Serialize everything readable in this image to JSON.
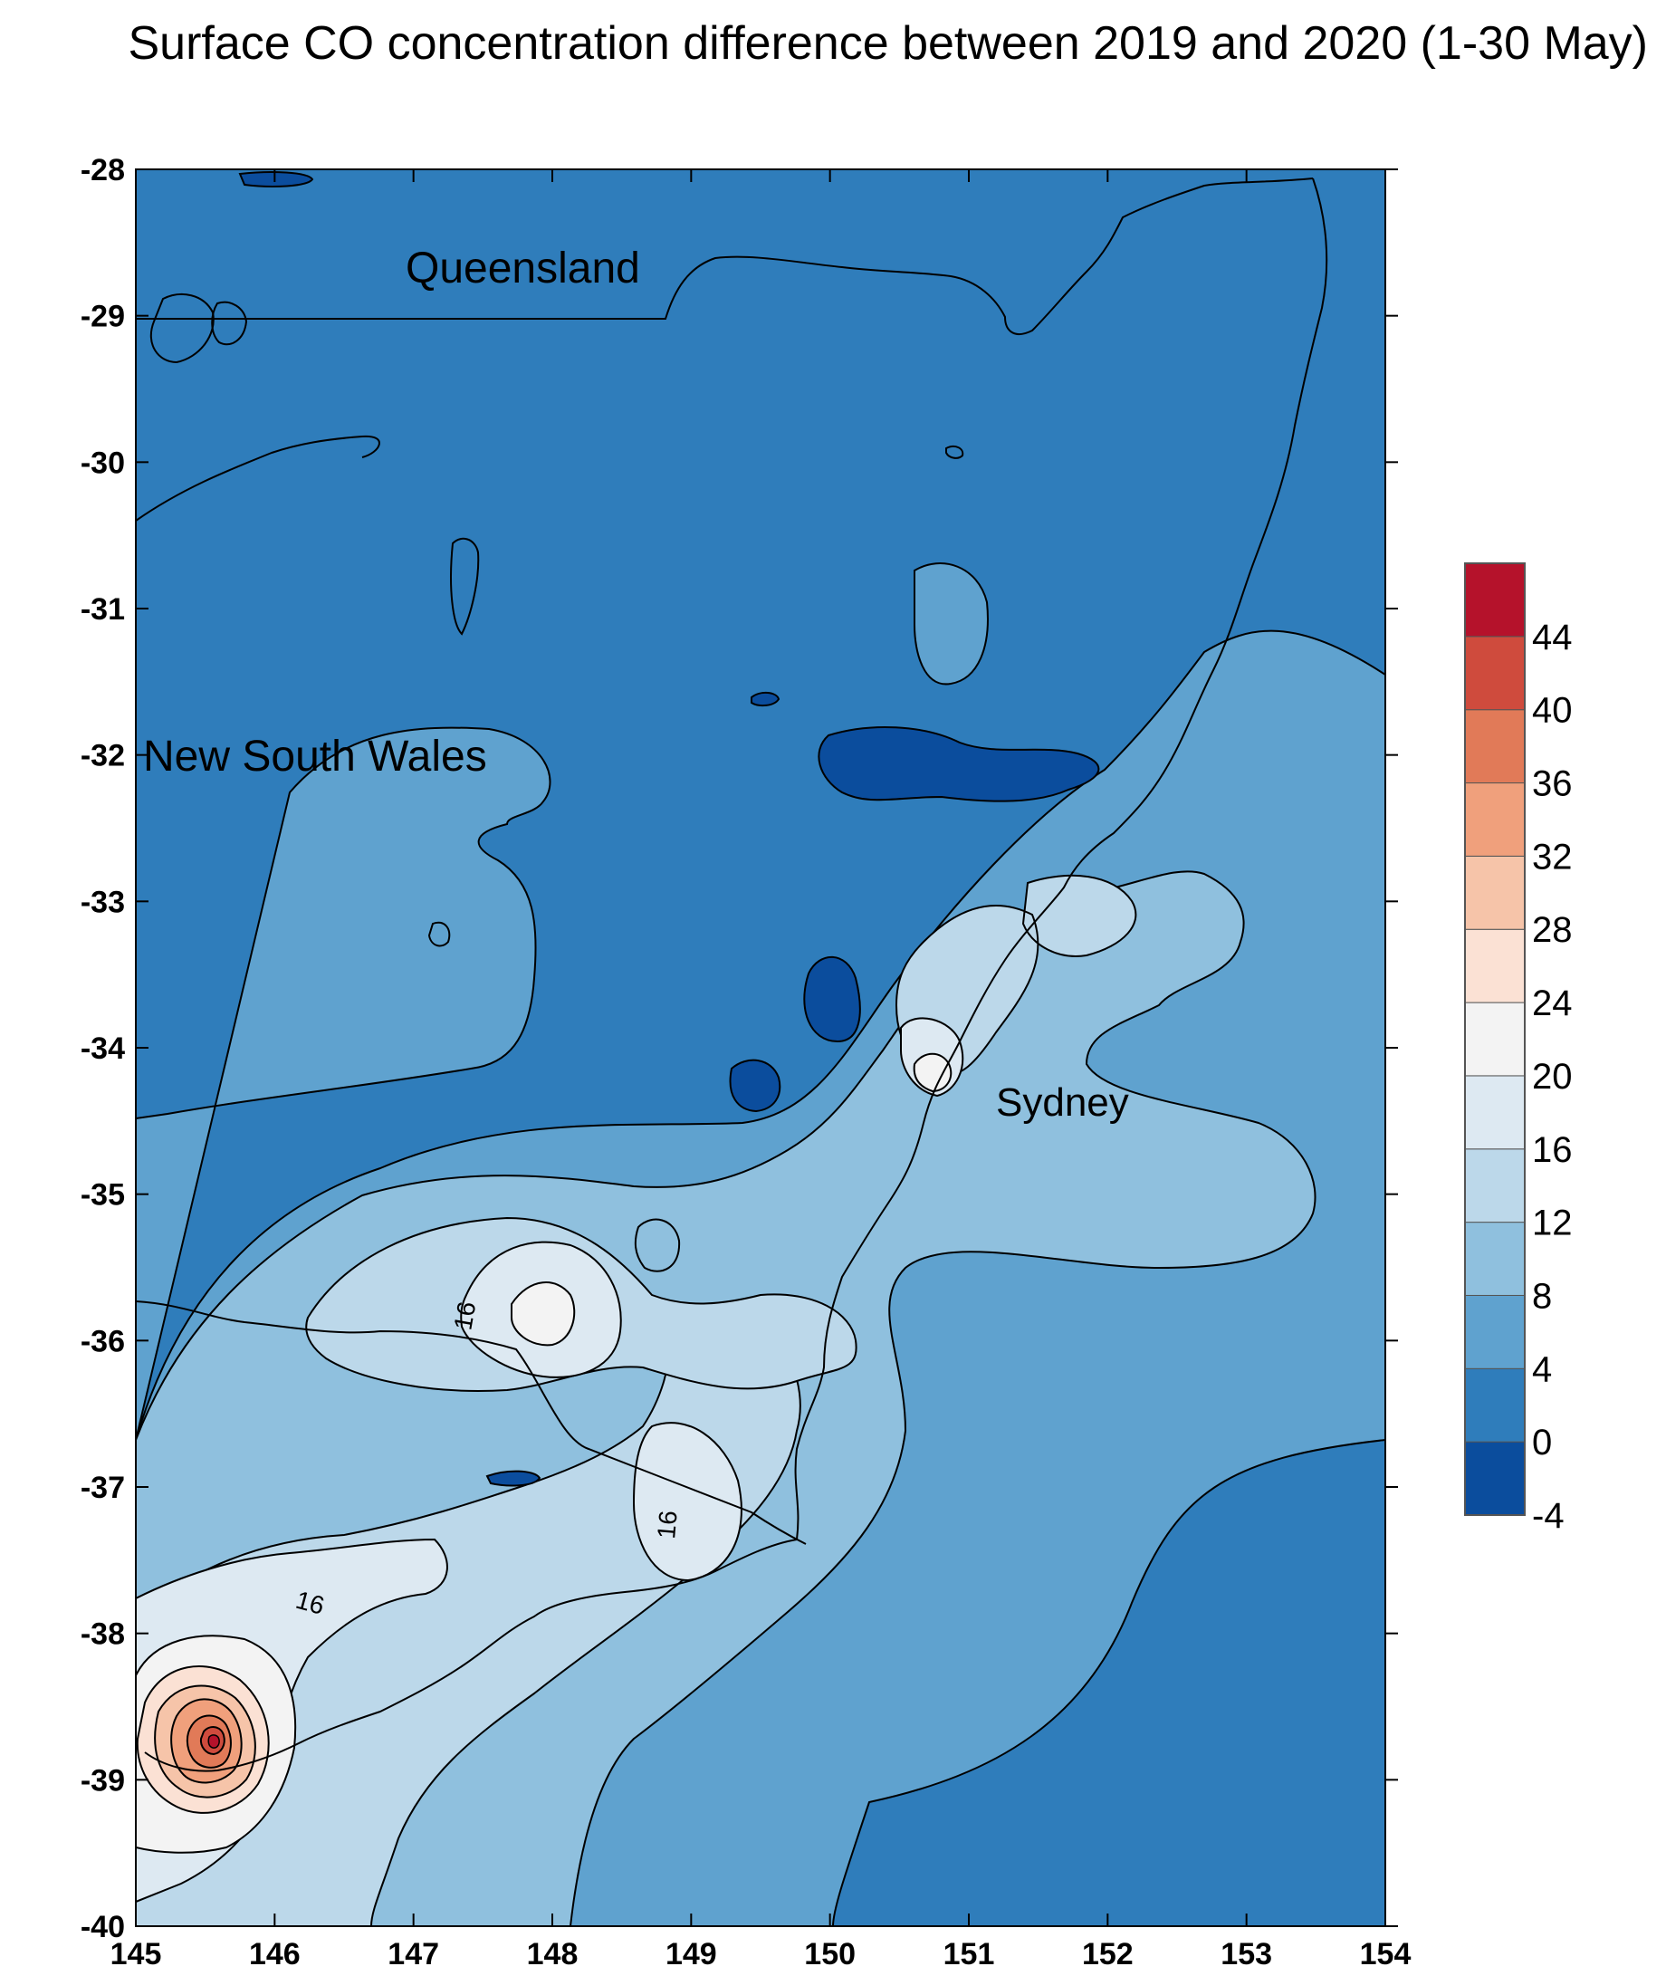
{
  "title": "Surface CO concentration difference between 2019 and 2020 (1-30 May)",
  "chart_data": {
    "type": "heatmap",
    "title": "Surface CO concentration difference between 2019 and 2020 (1-30 May)",
    "xlim": [
      145,
      154
    ],
    "ylim": [
      -40,
      -28
    ],
    "x_ticks": [
      145,
      146,
      147,
      148,
      149,
      150,
      151,
      152,
      153,
      154
    ],
    "y_ticks": [
      -28,
      -29,
      -30,
      -31,
      -32,
      -33,
      -34,
      -35,
      -36,
      -37,
      -38,
      -39,
      -40
    ],
    "grid": false,
    "colorbar": {
      "position": "right",
      "levels": [
        -4,
        0,
        4,
        8,
        12,
        16,
        20,
        24,
        28,
        32,
        36,
        40,
        44
      ],
      "colors": [
        "#0b4d9d",
        "#2f7dbb",
        "#5fa2cf",
        "#8fc0de",
        "#bcd8ea",
        "#dde9f2",
        "#f3f3f3",
        "#fbe1d4",
        "#f6c4a9",
        "#f0a07c",
        "#e17a58",
        "#cf4b3d",
        "#b5122b"
      ]
    },
    "place_labels": [
      {
        "text": "Queensland",
        "lon": 148.0,
        "lat": -28.8
      },
      {
        "text": "New South Wales",
        "lon": 146.4,
        "lat": -32.1
      },
      {
        "text": "Sydney",
        "lon": 151.9,
        "lat": -34.5
      }
    ],
    "contour_labels": [
      {
        "text": "16",
        "lon": 148.2,
        "lat": -35.8
      },
      {
        "text": "16",
        "lon": 149.3,
        "lat": -37.4
      },
      {
        "text": "16",
        "lon": 146.7,
        "lat": -37.85
      }
    ],
    "field_extrema": [
      {
        "lon": 145.85,
        "lat": -38.7,
        "value": 44
      },
      {
        "lon": 150.75,
        "lat": -34.35,
        "value": 20
      },
      {
        "lon": 148.1,
        "lat": -35.85,
        "value": 20
      },
      {
        "lon": 149.6,
        "lat": -34.3,
        "value": -4
      },
      {
        "lon": 151.0,
        "lat": -32.15,
        "value": -4
      }
    ]
  }
}
